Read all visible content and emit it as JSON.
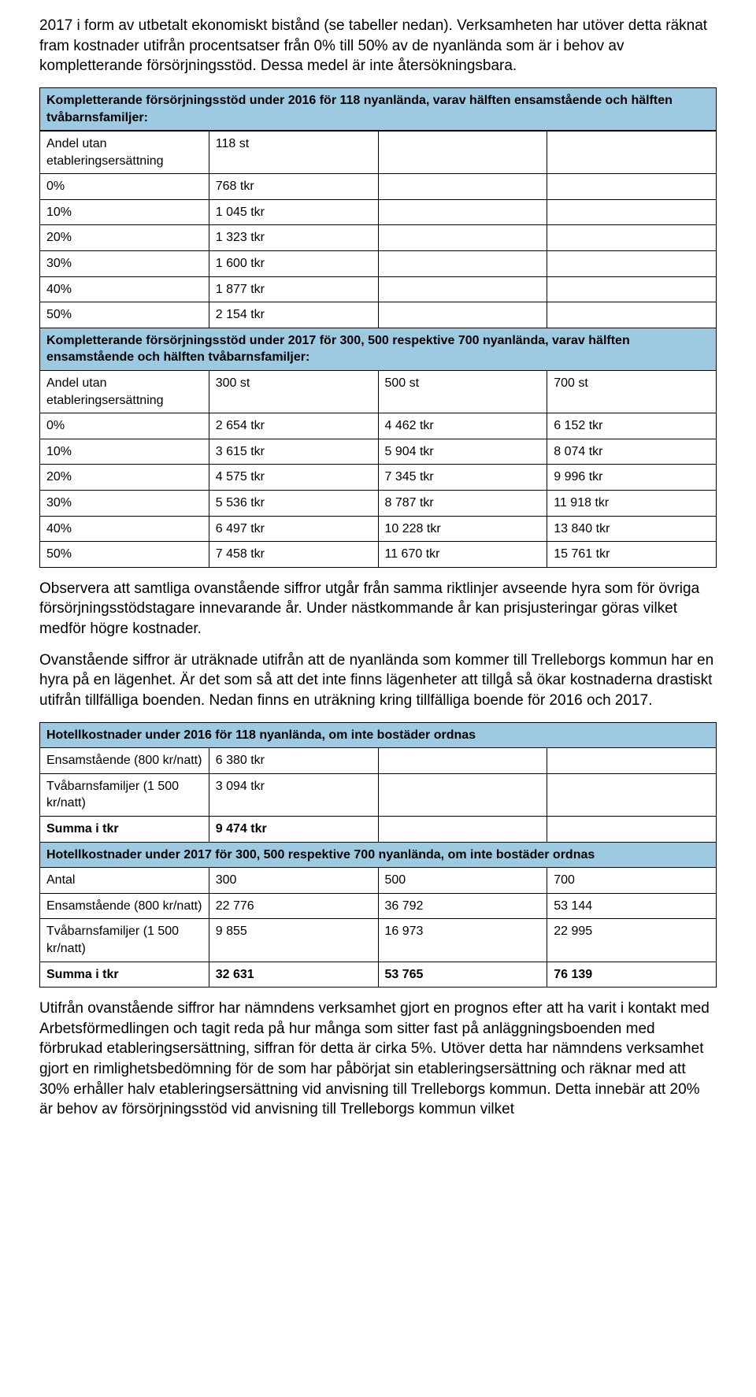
{
  "intro": {
    "p1": "2017 i form av utbetalt ekonomiskt bistånd (se tabeller nedan). Verksamheten har utöver detta räknat fram kostnader utifrån procentsatser från 0% till 50% av de nyanlända som är i behov av kompletterande försörjningsstöd. Dessa medel är inte återsökningsbara."
  },
  "table1": {
    "header": "Kompletterande försörjningsstöd under 2016 för 118 nyanlända, varav hälften ensamstående och hälften tvåbarnsfamiljer:",
    "rows": [
      [
        "Andel utan etableringsersättning",
        "118 st"
      ],
      [
        "0%",
        "768 tkr"
      ],
      [
        "10%",
        "1 045 tkr"
      ],
      [
        "20%",
        "1 323 tkr"
      ],
      [
        "30%",
        "1 600 tkr"
      ],
      [
        "40%",
        "1 877 tkr"
      ],
      [
        "50%",
        "2 154 tkr"
      ]
    ]
  },
  "table2": {
    "header": "Kompletterande försörjningsstöd under 2017 för 300, 500 respektive 700 nyanlända, varav hälften ensamstående och hälften tvåbarnsfamiljer:",
    "rows": [
      [
        "Andel utan etableringsersättning",
        "300 st",
        "500 st",
        "700 st"
      ],
      [
        "0%",
        "2 654 tkr",
        "4 462 tkr",
        "6 152 tkr"
      ],
      [
        "10%",
        "3 615 tkr",
        "5 904 tkr",
        "8 074 tkr"
      ],
      [
        "20%",
        "4 575 tkr",
        "7 345 tkr",
        "9 996 tkr"
      ],
      [
        "30%",
        "5 536 tkr",
        "8 787 tkr",
        "11 918 tkr"
      ],
      [
        "40%",
        "6 497 tkr",
        "10 228 tkr",
        "13 840 tkr"
      ],
      [
        "50%",
        "7 458 tkr",
        "11 670 tkr",
        "15 761 tkr"
      ]
    ]
  },
  "mid": {
    "p1": "Observera att samtliga ovanstående siffror utgår från samma riktlinjer avseende hyra som för övriga försörjningsstödstagare innevarande år. Under nästkommande år kan prisjusteringar göras vilket medför högre kostnader.",
    "p2": "Ovanstående siffror är uträknade utifrån att de nyanlända som kommer till Trelleborgs kommun har en hyra på en lägenhet. Är det som så att det inte finns lägenheter att tillgå så ökar kostnaderna drastiskt utifrån tillfälliga boenden. Nedan finns en uträkning kring tillfälliga boende för 2016 och 2017."
  },
  "table3": {
    "header1": "Hotellkostnader under 2016 för 118 nyanlända, om inte bostäder ordnas",
    "rows1": [
      [
        "Ensamstående (800 kr/natt)",
        "6 380 tkr"
      ],
      [
        "Tvåbarnsfamiljer (1 500 kr/natt)",
        "3 094 tkr"
      ],
      [
        "Summa i tkr",
        "9 474 tkr"
      ]
    ],
    "header2": "Hotellkostnader under 2017 för 300, 500 respektive 700 nyanlända, om inte bostäder ordnas",
    "rows2": [
      [
        "Antal",
        "300",
        "500",
        "700"
      ],
      [
        "Ensamstående (800 kr/natt)",
        "22 776",
        "36 792",
        "53 144"
      ],
      [
        "Tvåbarnsfamiljer (1 500 kr/natt)",
        "9 855",
        "16 973",
        "22 995"
      ],
      [
        "Summa i tkr",
        "32 631",
        "53 765",
        "76 139"
      ]
    ]
  },
  "outro": {
    "p1": "Utifrån ovanstående siffror har nämndens verksamhet gjort en prognos efter att ha varit i kontakt med Arbetsförmedlingen och tagit reda på hur många som sitter fast på anläggningsboenden med förbrukad etableringsersättning, siffran för detta är cirka 5%. Utöver detta har nämndens verksamhet gjort en rimlighetsbedömning för de som har påbörjat sin etableringsersättning och räknar med att 30% erhåller halv etableringsersättning vid anvisning till Trelleborgs kommun. Detta innebär att 20% är behov av försörjningsstöd vid anvisning till Trelleborgs kommun vilket"
  },
  "style": {
    "header_bg": "#9ecae1",
    "border_color": "#000000",
    "body_font_size": 19,
    "table_font_size": 16
  }
}
